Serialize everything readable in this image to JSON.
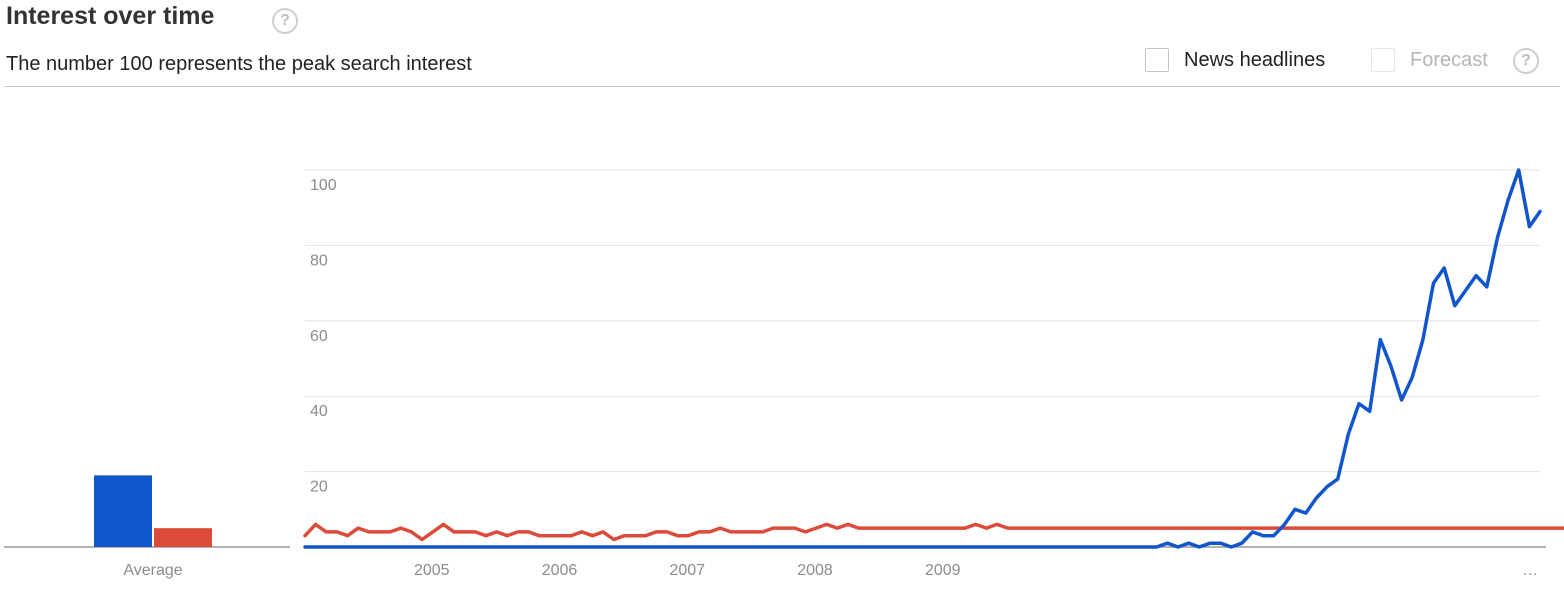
{
  "header": {
    "title": "Interest over time",
    "help_glyph": "?",
    "subtitle": "The number 100 represents the peak search interest",
    "news_label": "News headlines",
    "forecast_label": "Forecast",
    "news_checked": false,
    "forecast_checked": false,
    "forecast_disabled": true
  },
  "chart_data": {
    "type": "line",
    "title": "",
    "xlabel": "",
    "ylabel": "",
    "ylim": [
      0,
      100
    ],
    "yticks": [
      20,
      40,
      60,
      80,
      100
    ],
    "grid": true,
    "x_tick_labels": [
      "2005",
      "2006",
      "2007",
      "2008",
      "2009",
      "…"
    ],
    "colors": {
      "blue": "#1155cc",
      "red": "#dc4b39"
    },
    "average": {
      "label": "Average",
      "values": [
        19,
        5
      ]
    },
    "x_start": "2004-01",
    "series": [
      {
        "color": "#1155cc",
        "values": [
          0,
          0,
          0,
          0,
          0,
          0,
          0,
          0,
          0,
          0,
          0,
          0,
          0,
          0,
          0,
          0,
          0,
          0,
          0,
          0,
          0,
          0,
          0,
          0,
          0,
          0,
          0,
          0,
          0,
          0,
          0,
          0,
          0,
          0,
          0,
          0,
          0,
          0,
          0,
          0,
          0,
          0,
          0,
          0,
          0,
          0,
          0,
          0,
          0,
          0,
          0,
          0,
          0,
          0,
          0,
          0,
          0,
          0,
          0,
          0,
          0,
          0,
          0,
          0,
          0,
          0,
          0,
          0,
          0,
          0,
          0,
          0,
          0,
          0,
          0,
          0,
          0,
          0,
          0,
          0,
          0,
          1,
          0,
          1,
          0,
          1,
          1,
          0,
          1,
          4,
          3,
          3,
          6,
          10,
          9,
          13,
          16,
          18,
          30,
          38,
          36,
          55,
          48,
          39,
          45,
          55,
          70,
          74,
          64,
          68,
          72,
          69,
          82,
          92,
          100,
          85,
          89
        ]
      },
      {
        "color": "#dc4b39",
        "values": [
          3,
          6,
          4,
          4,
          3,
          5,
          4,
          4,
          4,
          5,
          4,
          2,
          4,
          6,
          4,
          4,
          4,
          3,
          4,
          3,
          4,
          4,
          3,
          3,
          3,
          3,
          4,
          3,
          4,
          2,
          3,
          3,
          3,
          4,
          4,
          3,
          3,
          4,
          4,
          5,
          4,
          4,
          4,
          4,
          5,
          5,
          5,
          4,
          5,
          6,
          5,
          6,
          5,
          5,
          5,
          5,
          5,
          5,
          5,
          5,
          5,
          5,
          5,
          6,
          5,
          6,
          5,
          5,
          5,
          5,
          5,
          5,
          5,
          5,
          5,
          5,
          5,
          5,
          5,
          5,
          5,
          5,
          5,
          5,
          5,
          5,
          5,
          5,
          5,
          5,
          5,
          5,
          5,
          5,
          5,
          5,
          5,
          5,
          5,
          5,
          5,
          5,
          5,
          5,
          5,
          5,
          5,
          5,
          5,
          5,
          5,
          5,
          5,
          5,
          5,
          5,
          5,
          5,
          5,
          5,
          5,
          5
        ]
      }
    ]
  }
}
